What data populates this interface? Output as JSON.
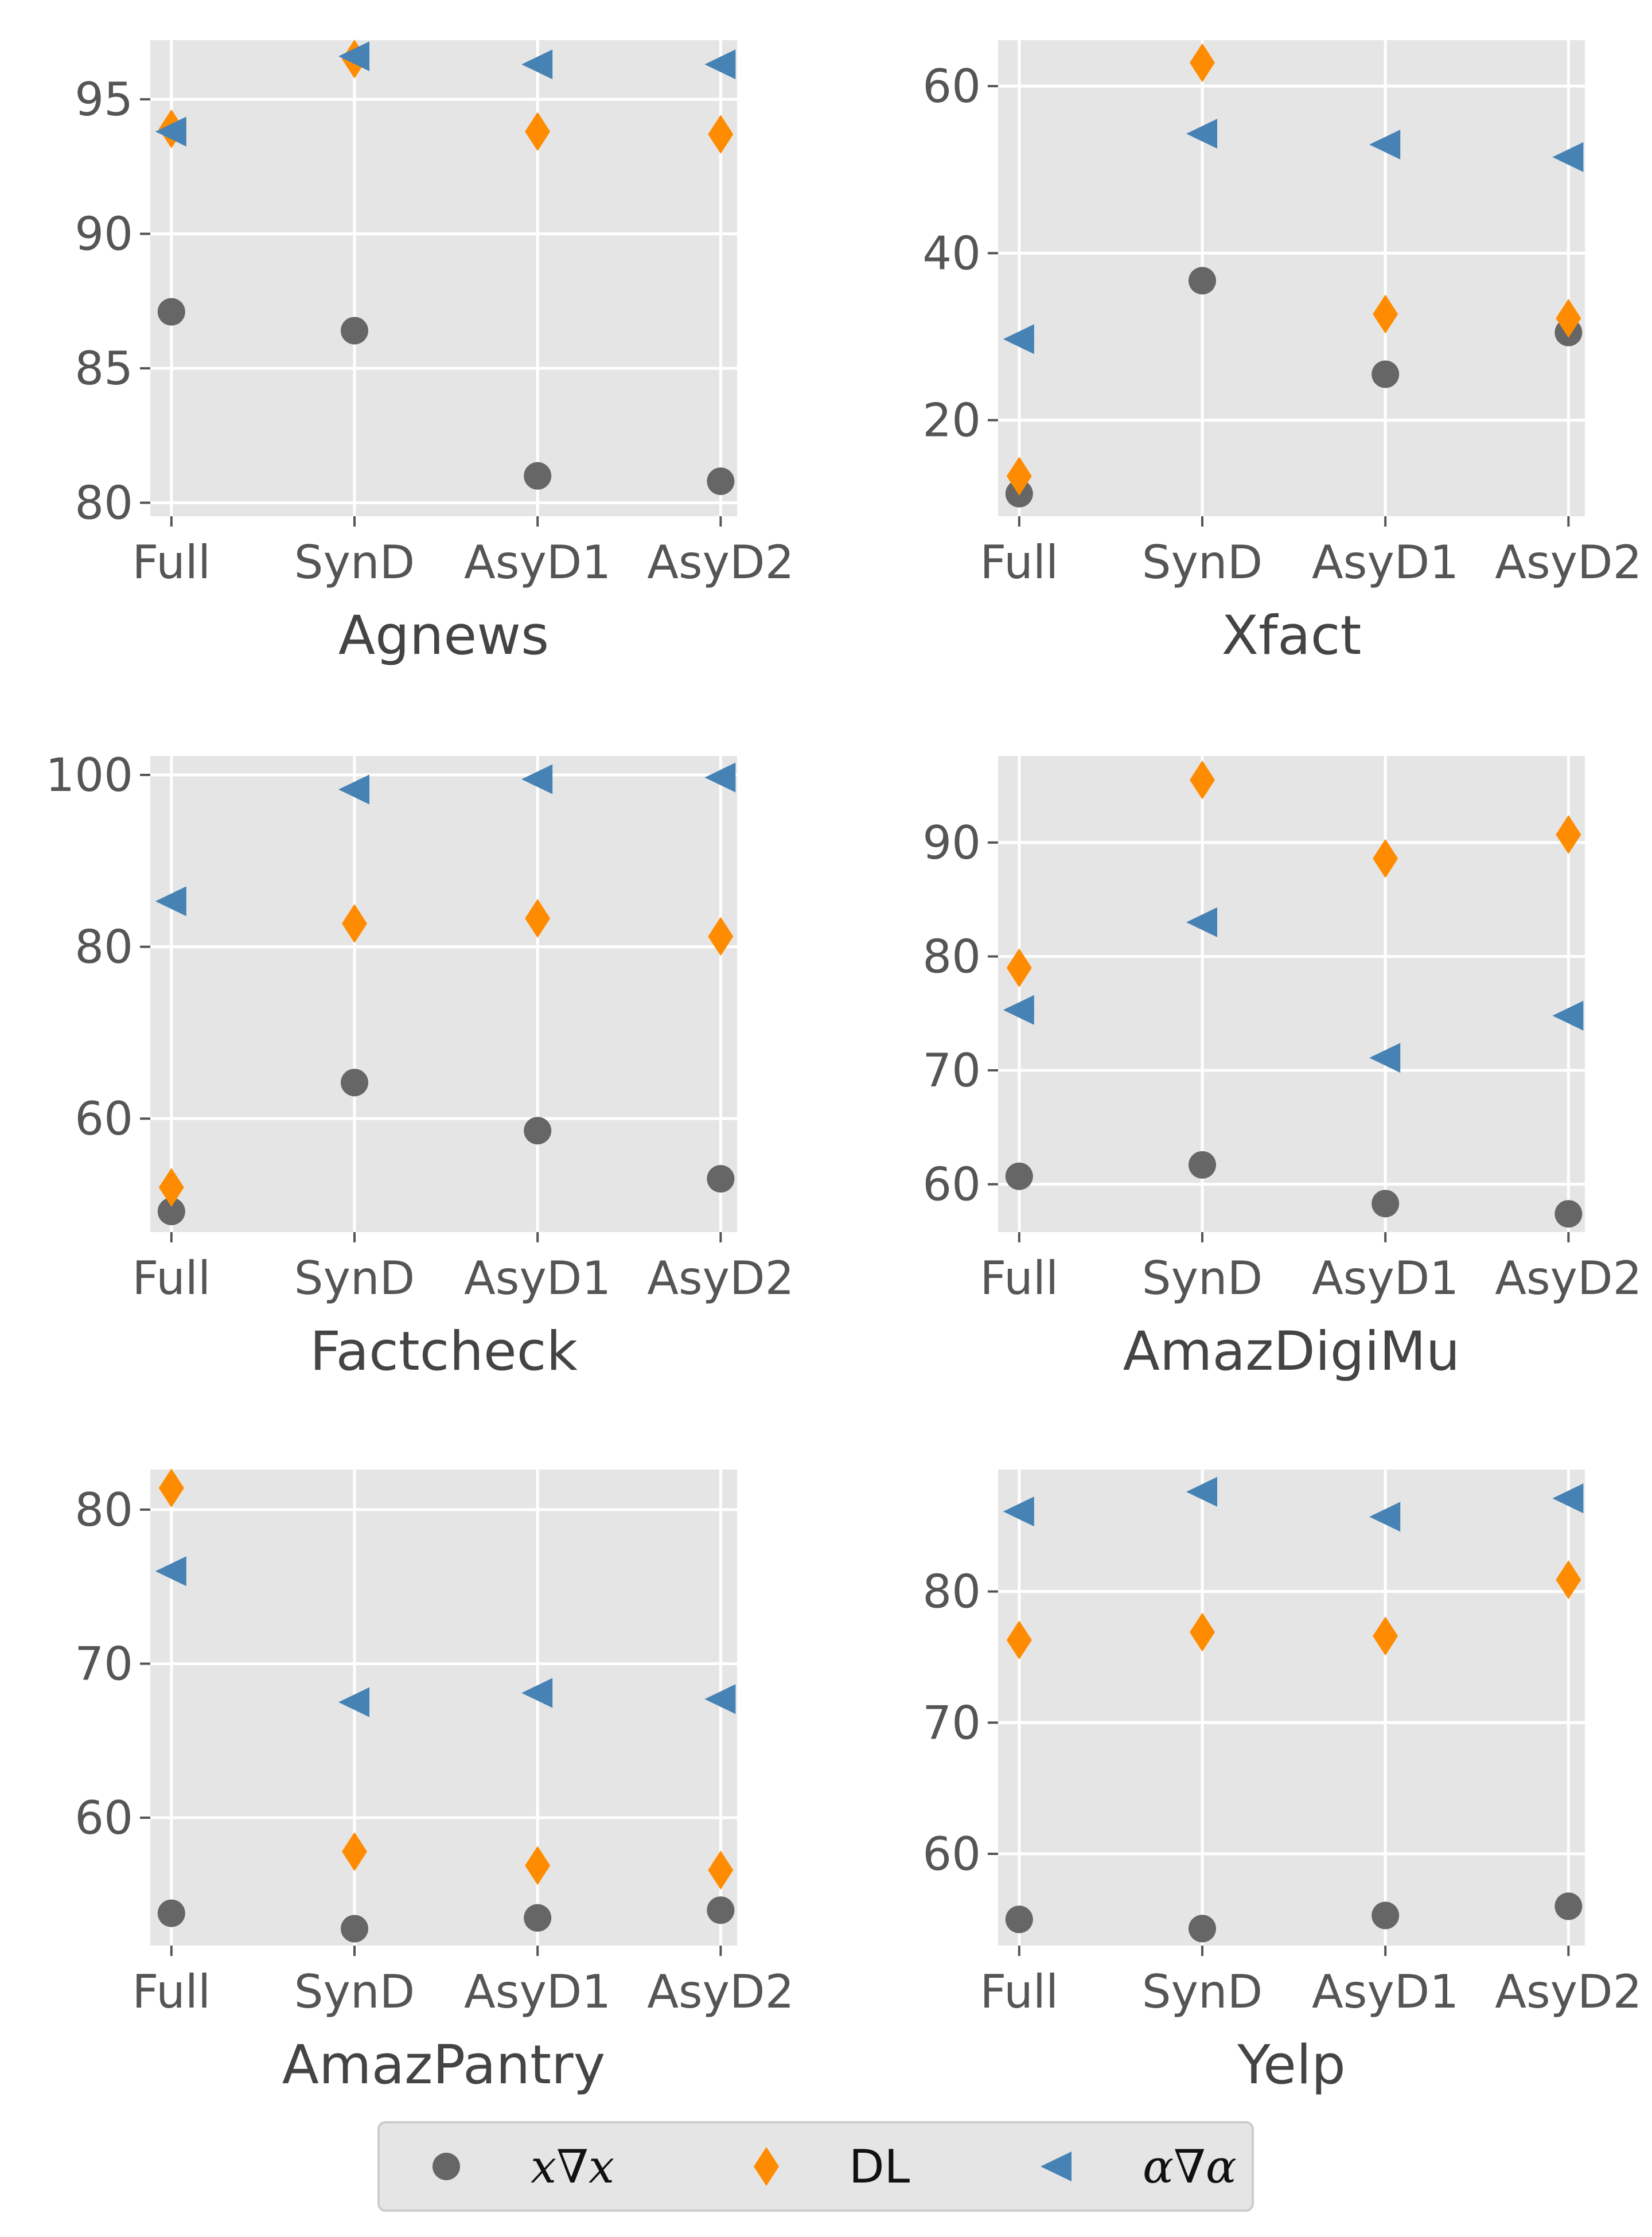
{
  "legend": {
    "items": [
      {
        "label": "x∇x",
        "italic": true,
        "marker": "circle",
        "color": "#666666"
      },
      {
        "label": "DL",
        "italic": false,
        "marker": "diamond",
        "color": "#ff8c00"
      },
      {
        "label": "α∇α",
        "italic": true,
        "marker": "triangle-left",
        "color": "#4682b4"
      }
    ]
  },
  "style": {
    "background": "#e5e5e5",
    "grid": "#ffffff",
    "tick_color": "#555555"
  },
  "chart_data": [
    {
      "type": "scatter",
      "title": "",
      "xlabel": "Agnews",
      "ylabel": "",
      "categories": [
        "Full",
        "SynD",
        "AsyD1",
        "AsyD2"
      ],
      "ylim": [
        79.5,
        97.2
      ],
      "yticks": [
        80,
        85,
        90,
        95
      ],
      "grid": true,
      "series": [
        {
          "name": "x∇x",
          "values": [
            87.1,
            86.4,
            81.0,
            80.8
          ]
        },
        {
          "name": "DL",
          "values": [
            93.9,
            96.5,
            93.8,
            93.7
          ]
        },
        {
          "name": "α∇α",
          "values": [
            93.8,
            96.6,
            96.3,
            96.3
          ]
        }
      ]
    },
    {
      "type": "scatter",
      "title": "",
      "xlabel": "Xfact",
      "ylabel": "",
      "categories": [
        "Full",
        "SynD",
        "AsyD1",
        "AsyD2"
      ],
      "ylim": [
        8.5,
        65.5
      ],
      "yticks": [
        20,
        40,
        60
      ],
      "grid": true,
      "series": [
        {
          "name": "x∇x",
          "values": [
            11.2,
            36.7,
            25.5,
            30.5
          ]
        },
        {
          "name": "DL",
          "values": [
            13.3,
            62.8,
            32.7,
            32.2
          ]
        },
        {
          "name": "α∇α",
          "values": [
            29.7,
            54.3,
            53.0,
            51.5
          ]
        }
      ]
    },
    {
      "type": "scatter",
      "title": "",
      "xlabel": "Factcheck",
      "ylabel": "",
      "categories": [
        "Full",
        "SynD",
        "AsyD1",
        "AsyD2"
      ],
      "ylim": [
        46.8,
        102.2
      ],
      "yticks": [
        60,
        80,
        100
      ],
      "grid": true,
      "series": [
        {
          "name": "x∇x",
          "values": [
            49.2,
            64.2,
            58.6,
            53.0
          ]
        },
        {
          "name": "DL",
          "values": [
            52.0,
            82.7,
            83.3,
            81.2
          ]
        },
        {
          "name": "α∇α",
          "values": [
            85.3,
            98.3,
            99.5,
            99.7
          ]
        }
      ]
    },
    {
      "type": "scatter",
      "title": "",
      "xlabel": "AmazDigiMu",
      "ylabel": "",
      "categories": [
        "Full",
        "SynD",
        "AsyD1",
        "AsyD2"
      ],
      "ylim": [
        55.8,
        97.6
      ],
      "yticks": [
        60,
        70,
        80,
        90
      ],
      "grid": true,
      "series": [
        {
          "name": "x∇x",
          "values": [
            60.7,
            61.7,
            58.3,
            57.4
          ]
        },
        {
          "name": "DL",
          "values": [
            79.0,
            95.5,
            88.6,
            90.7
          ]
        },
        {
          "name": "α∇α",
          "values": [
            75.3,
            83.0,
            71.1,
            74.8
          ]
        }
      ]
    },
    {
      "type": "scatter",
      "title": "",
      "xlabel": "AmazPantry",
      "ylabel": "",
      "categories": [
        "Full",
        "SynD",
        "AsyD1",
        "AsyD2"
      ],
      "ylim": [
        51.7,
        82.6
      ],
      "yticks": [
        60,
        70,
        80
      ],
      "grid": true,
      "series": [
        {
          "name": "x∇x",
          "values": [
            53.8,
            52.8,
            53.5,
            54.0
          ]
        },
        {
          "name": "DL",
          "values": [
            81.4,
            57.8,
            56.9,
            56.6
          ]
        },
        {
          "name": "α∇α",
          "values": [
            76.0,
            67.5,
            68.1,
            67.7
          ]
        }
      ]
    },
    {
      "type": "scatter",
      "title": "",
      "xlabel": "Yelp",
      "ylabel": "",
      "categories": [
        "Full",
        "SynD",
        "AsyD1",
        "AsyD2"
      ],
      "ylim": [
        53.0,
        89.3
      ],
      "yticks": [
        60,
        70,
        80
      ],
      "grid": true,
      "series": [
        {
          "name": "x∇x",
          "values": [
            55.0,
            54.3,
            55.3,
            56.0
          ]
        },
        {
          "name": "DL",
          "values": [
            76.3,
            76.9,
            76.6,
            80.9
          ]
        },
        {
          "name": "α∇α",
          "values": [
            86.1,
            87.6,
            85.7,
            87.1
          ]
        }
      ]
    }
  ]
}
